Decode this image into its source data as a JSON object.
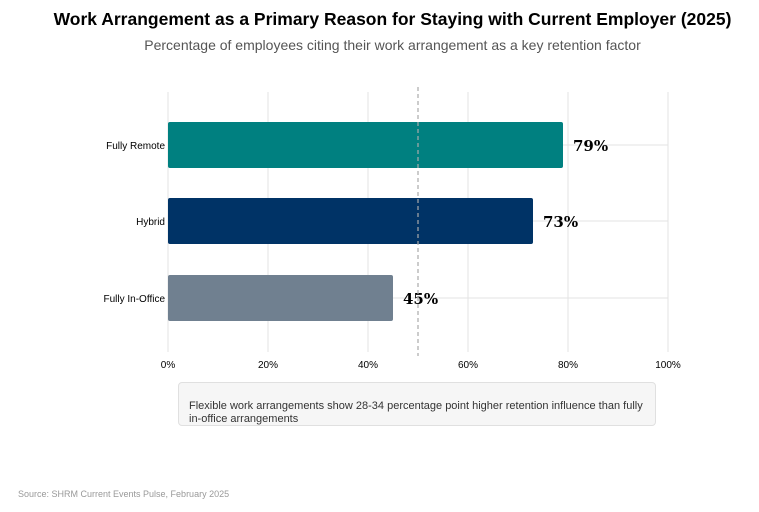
{
  "chart_data": {
    "type": "bar",
    "orientation": "horizontal",
    "title": "Work Arrangement as a Primary Reason for Staying with Current Employer (2025)",
    "subtitle": "Percentage of employees citing their work arrangement as a key retention factor",
    "categories": [
      "Fully Remote",
      "Hybrid",
      "Fully In-Office"
    ],
    "values": [
      79,
      73,
      45
    ],
    "value_labels": [
      "79%",
      "73%",
      "45%"
    ],
    "colors": [
      "#008080",
      "#003366",
      "#708090"
    ],
    "xlim": [
      0,
      100
    ],
    "xticks": [
      0,
      20,
      40,
      60,
      80,
      100
    ],
    "xtick_labels": [
      "0%",
      "20%",
      "40%",
      "60%",
      "80%",
      "100%"
    ],
    "reference_line": 50,
    "grid": true,
    "annotation": "Flexible work arrangements show 28-34 percentage point higher retention influence than fully in-office arrangements",
    "source": "Source: SHRM Current Events Pulse, February 2025"
  }
}
